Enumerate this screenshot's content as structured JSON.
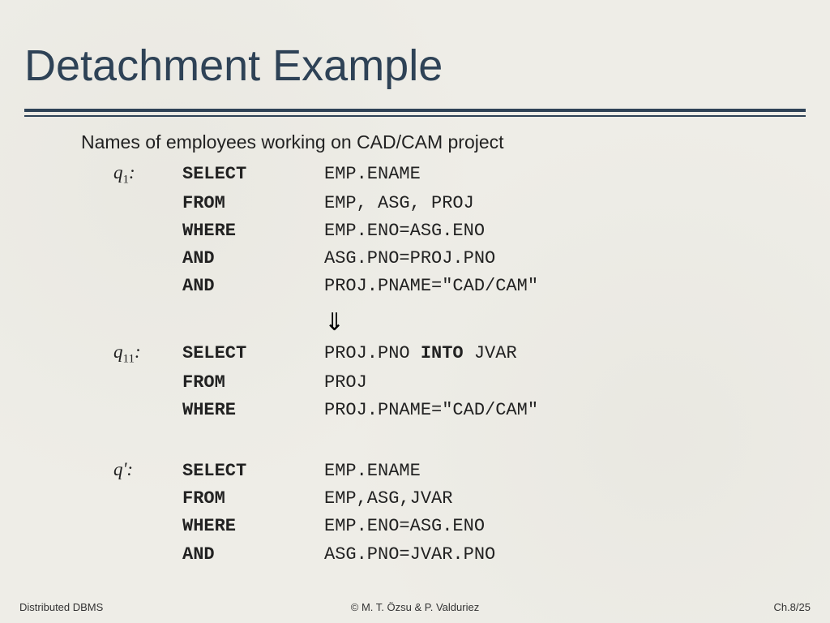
{
  "title": "Detachment Example",
  "subtitle": "Names of employees working on CAD/CAM project",
  "arrow_symbol": "⇓",
  "queries": [
    {
      "label_html": "q<sub>1</sub>:",
      "lines": [
        {
          "kw": "SELECT",
          "val": "EMP.ENAME"
        },
        {
          "kw": "FROM",
          "val": "EMP, ASG, PROJ"
        },
        {
          "kw": "WHERE",
          "val": "EMP.ENO=ASG.ENO"
        },
        {
          "kw": "AND",
          "val": "ASG.PNO=PROJ.PNO"
        },
        {
          "kw": "AND",
          "val": "PROJ.PNAME=\"CAD/CAM\""
        }
      ],
      "arrow_after": true
    },
    {
      "label_html": "q<sub>11</sub>:",
      "lines": [
        {
          "kw": "SELECT",
          "val_html": "PROJ.PNO <span class=\"bold\">INTO</span> JVAR"
        },
        {
          "kw": "FROM",
          "val": "PROJ"
        },
        {
          "kw": "WHERE",
          "val": "PROJ.PNAME=\"CAD/CAM\""
        }
      ],
      "arrow_after": false,
      "gap_after": 28
    },
    {
      "label_html": "q':",
      "lines": [
        {
          "kw": "SELECT",
          "val": "EMP.ENAME"
        },
        {
          "kw": "FROM",
          "val": "EMP,ASG,JVAR"
        },
        {
          "kw": "WHERE",
          "val": "EMP.ENO=ASG.ENO"
        },
        {
          "kw": "AND",
          "val": "ASG.PNO=JVAR.PNO"
        }
      ],
      "arrow_after": false
    }
  ],
  "footer": {
    "left": "Distributed DBMS",
    "center": "© M. T. Özsu & P. Valduriez",
    "right": "Ch.8/25"
  },
  "style": {
    "background_color": "#eeede7",
    "title_color": "#2e4256",
    "rule_color": "#2e4256",
    "title_fontsize": 54,
    "subtitle_fontsize": 23,
    "code_fontsize": 22,
    "footer_fontsize": 13
  }
}
